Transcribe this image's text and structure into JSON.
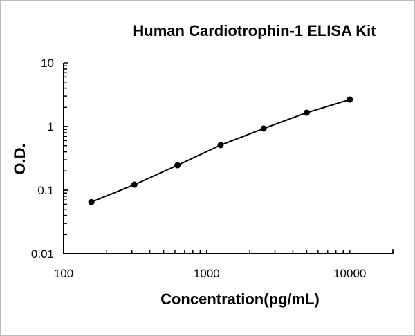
{
  "chart_data": {
    "type": "line",
    "title": "Human Cardiotrophin-1 ELISA Kit",
    "xlabel": "Concentration(pg/mL)",
    "ylabel": "O.D.",
    "x_scale": "log",
    "y_scale": "log",
    "xlim": [
      100,
      20000
    ],
    "ylim": [
      0.01,
      10
    ],
    "x_ticks": [
      100,
      1000,
      10000
    ],
    "x_tick_labels": [
      "100",
      "1000",
      "10000"
    ],
    "y_ticks": [
      0.01,
      0.1,
      1,
      10
    ],
    "y_tick_labels": [
      "0.01",
      "0.1",
      "1",
      "10"
    ],
    "grid": false,
    "series": [
      {
        "x": [
          156.25,
          312.5,
          625,
          1250,
          2500,
          5000,
          10000
        ],
        "y": [
          0.065,
          0.122,
          0.246,
          0.51,
          0.93,
          1.65,
          2.65
        ],
        "color": "#000000",
        "marker": "circle"
      }
    ]
  }
}
